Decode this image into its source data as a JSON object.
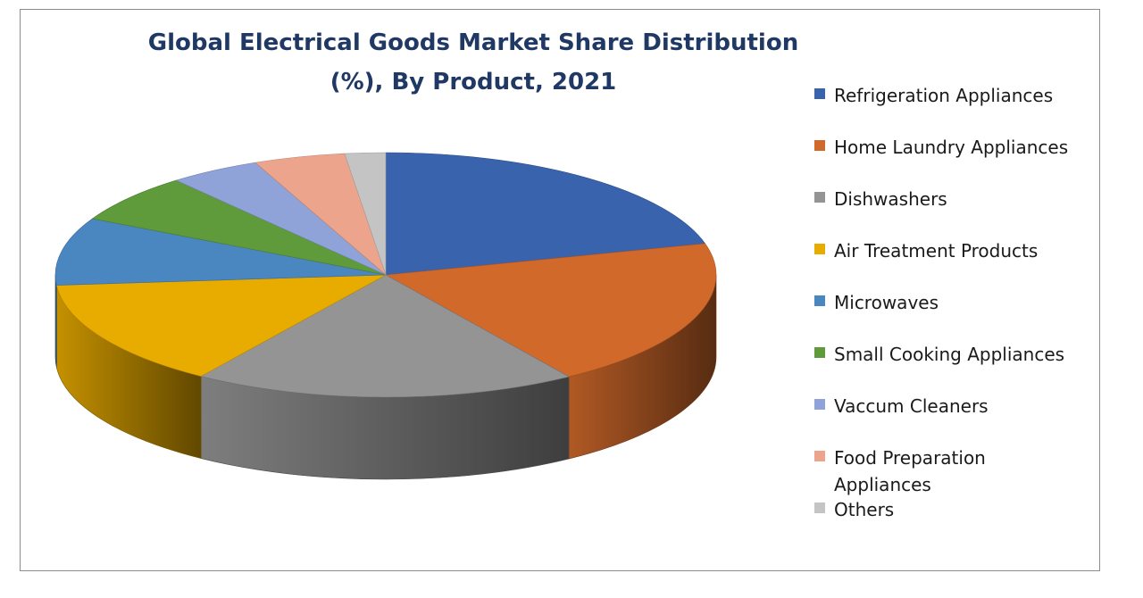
{
  "chart_data": {
    "type": "pie",
    "title": "Global Electrical Goods Market Share Distribution (%), By Product, 2021",
    "legend_position": "right",
    "three_d": true,
    "start_angle_deg": 90,
    "direction": "clockwise",
    "slices": [
      {
        "label": "Refrigeration Appliances",
        "value": 21.0,
        "color": "#3a63ad"
      },
      {
        "label": "Home Laundry Appliances",
        "value": 19.9,
        "color": "#d0692a"
      },
      {
        "label": "Dishwashers",
        "value": 18.9,
        "color": "#949494"
      },
      {
        "label": "Air Treatment Products",
        "value": 14.3,
        "color": "#e8ab00"
      },
      {
        "label": "Microwaves",
        "value": 9.0,
        "color": "#4a86c0"
      },
      {
        "label": "Small Cooking Appliances",
        "value": 6.5,
        "color": "#5f9a3b"
      },
      {
        "label": "Vaccum Cleaners",
        "value": 4.5,
        "color": "#8fa3d9"
      },
      {
        "label": "Food Preparation Appliances",
        "value": 4.5,
        "color": "#eca58c"
      },
      {
        "label": "Others",
        "value": 2.0,
        "color": "#c4c4c4"
      }
    ]
  }
}
